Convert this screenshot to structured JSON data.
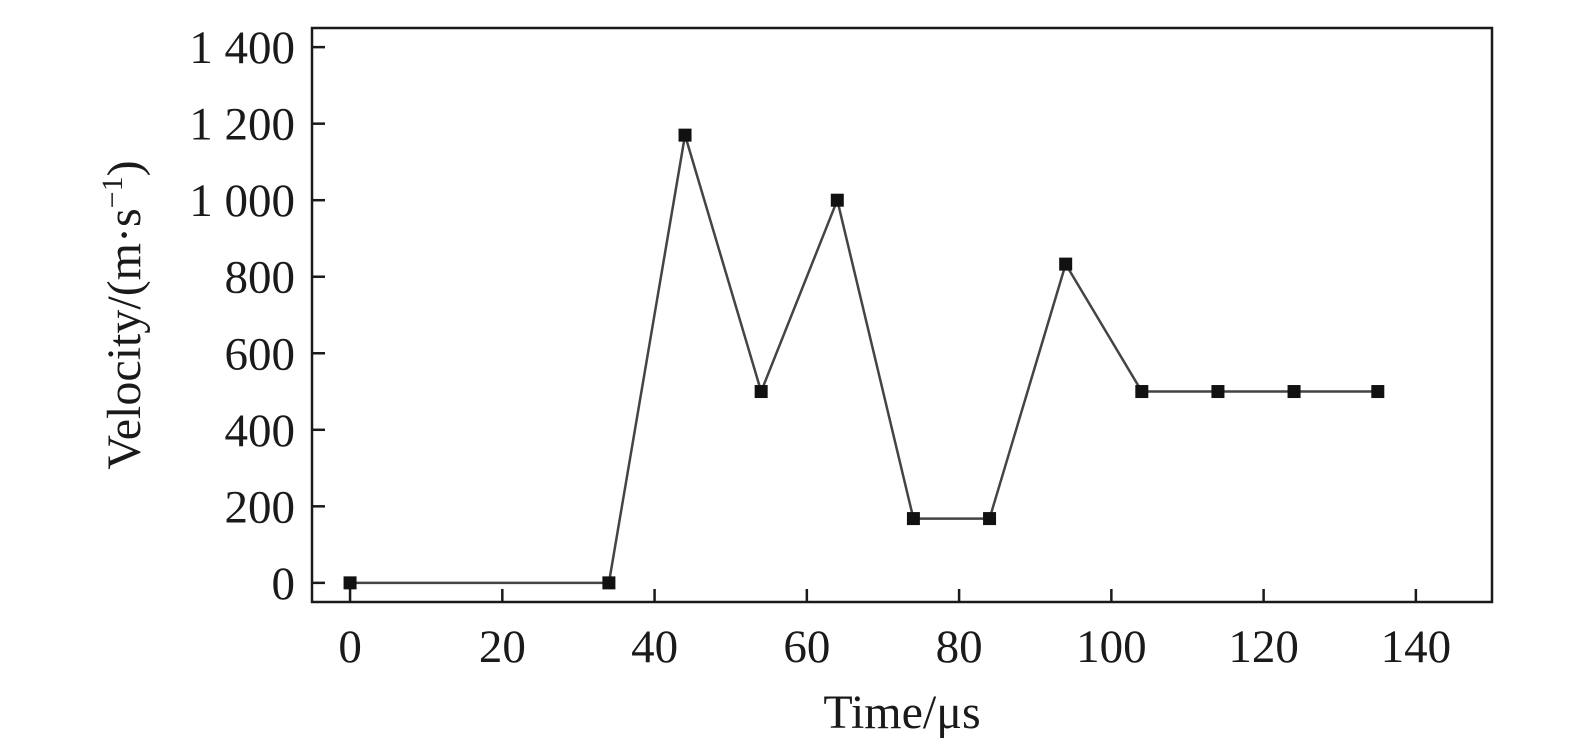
{
  "chart_data": {
    "type": "line",
    "title": "",
    "xlabel": "Time/μs",
    "ylabel_parts": {
      "prefix": "Velocity/(m·s",
      "exponent": "−1",
      "suffix": ")"
    },
    "xlim": [
      -5,
      150
    ],
    "ylim": [
      -50,
      1450
    ],
    "xticks": [
      0,
      20,
      40,
      60,
      80,
      100,
      120,
      140
    ],
    "xtick_labels": [
      "0",
      "20",
      "40",
      "60",
      "80",
      "100",
      "120",
      "140"
    ],
    "yticks": [
      0,
      200,
      400,
      600,
      800,
      1000,
      1200,
      1400
    ],
    "ytick_labels": [
      "0",
      "200",
      "400",
      "600",
      "800",
      "1 000",
      "1 200",
      "1 400"
    ],
    "grid": false,
    "legend": "none",
    "colors": {
      "line": "#444444",
      "marker": "#111111",
      "axis": "#1a1a1a"
    },
    "marker": "square",
    "series": [
      {
        "x": [
          0,
          34,
          44,
          54,
          64,
          74,
          84,
          94,
          104,
          114,
          124,
          135
        ],
        "y": [
          0,
          0,
          1170,
          500,
          1000,
          168,
          168,
          833,
          500,
          500,
          500,
          500
        ]
      }
    ]
  }
}
